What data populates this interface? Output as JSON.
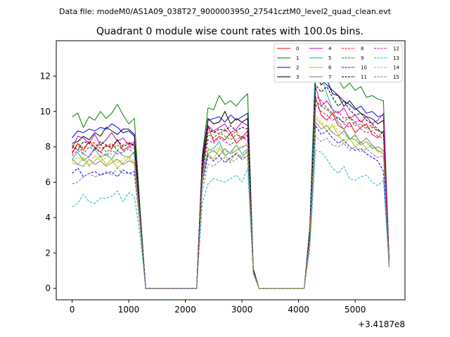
{
  "header": {
    "file_line": "Data file: modeM0/AS1A09_038T27_9000003950_27541cztM0_level2_quad_clean.evt"
  },
  "chart_data": {
    "type": "line",
    "title": "Quadrant 0 module wise count rates with 100.0s bins.",
    "xlabel": "",
    "ylabel": "",
    "x_offset_label": "+3.4187e8",
    "xlim": [
      -280,
      5880
    ],
    "ylim": [
      -0.65,
      14.0
    ],
    "xticks": [
      0,
      1000,
      2000,
      3000,
      4000,
      5000
    ],
    "yticks": [
      0,
      2,
      4,
      6,
      8,
      10,
      12
    ],
    "grid": false,
    "legend_placement": "top-right",
    "legend_columns": 4,
    "x": [
      0,
      100,
      200,
      300,
      400,
      500,
      600,
      700,
      800,
      900,
      1000,
      1100,
      1200,
      1300,
      1400,
      1500,
      1600,
      1700,
      1800,
      1900,
      2000,
      2100,
      2200,
      2300,
      2400,
      2500,
      2600,
      2700,
      2800,
      2900,
      3000,
      3100,
      3200,
      3300,
      3400,
      3500,
      3600,
      3700,
      3800,
      3900,
      4000,
      4100,
      4200,
      4300,
      4400,
      4500,
      4600,
      4700,
      4800,
      4900,
      5000,
      5100,
      5200,
      5300,
      5400,
      5500,
      5600
    ],
    "series": [
      {
        "name": "0",
        "color": "#ff0000",
        "dash": "solid",
        "values": [
          7.6,
          8.2,
          7.8,
          8.3,
          8.0,
          7.7,
          8.1,
          7.9,
          8.4,
          7.8,
          8.0,
          8.2,
          4.0,
          0,
          0,
          0,
          0,
          0,
          0,
          0,
          0,
          0,
          0,
          6.5,
          9.2,
          8.3,
          8.6,
          8.4,
          8.8,
          8.2,
          8.5,
          8.9,
          1.0,
          0,
          0,
          0,
          0,
          0,
          0,
          0,
          0,
          0,
          3.0,
          10.8,
          9.8,
          9.5,
          9.9,
          9.2,
          9.0,
          9.4,
          8.8,
          9.1,
          9.3,
          8.7,
          8.5,
          8.9,
          1.5
        ]
      },
      {
        "name": "1",
        "color": "#008000",
        "dash": "solid",
        "values": [
          9.7,
          9.9,
          9.1,
          9.7,
          9.5,
          10.0,
          9.6,
          9.9,
          10.4,
          9.8,
          9.3,
          9.6,
          4.5,
          0,
          0,
          0,
          0,
          0,
          0,
          0,
          0,
          0,
          0,
          7.5,
          10.2,
          10.1,
          10.9,
          10.4,
          10.6,
          10.3,
          10.7,
          11.0,
          1.1,
          0,
          0,
          0,
          0,
          0,
          0,
          0,
          0,
          0,
          3.5,
          13.2,
          12.8,
          12.5,
          12.0,
          11.8,
          11.3,
          11.6,
          11.2,
          11.4,
          10.8,
          10.9,
          10.7,
          10.6,
          1.5
        ]
      },
      {
        "name": "2",
        "color": "#0000ff",
        "dash": "solid",
        "values": [
          8.5,
          8.9,
          8.8,
          9.0,
          8.9,
          9.1,
          9.0,
          9.3,
          9.1,
          8.8,
          8.9,
          8.6,
          4.3,
          0,
          0,
          0,
          0,
          0,
          0,
          0,
          0,
          0,
          0,
          7.3,
          9.5,
          9.6,
          9.7,
          9.4,
          9.8,
          9.5,
          9.7,
          9.9,
          1.1,
          0,
          0,
          0,
          0,
          0,
          0,
          0,
          0,
          0,
          3.3,
          12.3,
          11.8,
          11.5,
          11.2,
          10.9,
          10.6,
          10.4,
          10.1,
          10.3,
          9.9,
          10.0,
          9.7,
          9.8,
          1.5
        ]
      },
      {
        "name": "3",
        "color": "#000000",
        "dash": "solid",
        "values": [
          8.2,
          8.3,
          8.6,
          8.4,
          8.8,
          8.6,
          9.1,
          8.9,
          8.7,
          9.0,
          9.0,
          8.7,
          4.2,
          0,
          0,
          0,
          0,
          0,
          0,
          0,
          0,
          0,
          0,
          7.2,
          9.6,
          9.3,
          9.4,
          10.0,
          9.3,
          9.6,
          9.4,
          9.6,
          1.1,
          0,
          0,
          0,
          0,
          0,
          0,
          0,
          0,
          0,
          3.3,
          12.1,
          11.5,
          11.8,
          11.0,
          10.9,
          10.3,
          10.6,
          10.2,
          9.9,
          9.7,
          9.6,
          9.3,
          9.5,
          1.5
        ]
      },
      {
        "name": "4",
        "color": "#bf00bf",
        "dash": "solid",
        "values": [
          7.9,
          8.6,
          8.5,
          8.2,
          8.7,
          8.1,
          8.4,
          8.8,
          8.3,
          8.5,
          8.1,
          8.3,
          4.1,
          0,
          0,
          0,
          0,
          0,
          0,
          0,
          0,
          0,
          0,
          7.0,
          9.2,
          8.9,
          9.1,
          9.3,
          8.8,
          9.0,
          9.4,
          9.2,
          1.0,
          0,
          0,
          0,
          0,
          0,
          0,
          0,
          0,
          0,
          3.2,
          11.4,
          10.3,
          10.6,
          10.1,
          9.9,
          10.2,
          9.6,
          9.8,
          9.4,
          9.7,
          9.3,
          9.5,
          9.9,
          1.5
        ]
      },
      {
        "name": "5",
        "color": "#20b2aa",
        "dash": "solid",
        "values": [
          7.3,
          7.7,
          7.2,
          7.5,
          7.9,
          7.4,
          7.6,
          7.3,
          7.8,
          7.5,
          7.4,
          7.7,
          3.9,
          0,
          0,
          0,
          0,
          0,
          0,
          0,
          0,
          0,
          0,
          6.4,
          7.8,
          7.9,
          8.3,
          7.5,
          7.7,
          8.1,
          7.6,
          7.9,
          1.0,
          0,
          0,
          0,
          0,
          0,
          0,
          0,
          0,
          0,
          2.9,
          12.8,
          12.0,
          11.0,
          10.1,
          9.4,
          9.0,
          8.5,
          8.4,
          8.1,
          8.3,
          7.9,
          8.0,
          7.8,
          1.3
        ]
      },
      {
        "name": "6",
        "color": "#bfbf00",
        "dash": "solid",
        "values": [
          7.1,
          7.0,
          7.4,
          6.9,
          7.2,
          7.5,
          7.0,
          7.3,
          6.8,
          7.1,
          7.4,
          7.0,
          3.8,
          0,
          0,
          0,
          0,
          0,
          0,
          0,
          0,
          0,
          0,
          6.1,
          7.6,
          7.3,
          7.9,
          7.5,
          7.2,
          7.7,
          7.4,
          7.8,
          0.9,
          0,
          0,
          0,
          0,
          0,
          0,
          0,
          0,
          0,
          2.8,
          9.6,
          9.3,
          8.9,
          9.2,
          8.7,
          8.2,
          8.5,
          8.0,
          8.3,
          7.9,
          8.1,
          7.7,
          7.8,
          1.3
        ]
      },
      {
        "name": "7",
        "color": "#808080",
        "dash": "solid",
        "values": [
          7.3,
          7.0,
          6.9,
          7.3,
          7.0,
          7.2,
          6.9,
          7.1,
          7.3,
          7.0,
          7.2,
          7.1,
          3.8,
          0,
          0,
          0,
          0,
          0,
          0,
          0,
          0,
          0,
          0,
          6.2,
          7.6,
          7.8,
          7.5,
          7.9,
          7.6,
          7.8,
          8.0,
          8.1,
          0.9,
          0,
          0,
          0,
          0,
          0,
          0,
          0,
          0,
          0,
          2.9,
          9.4,
          9.0,
          9.2,
          8.8,
          8.6,
          8.9,
          8.4,
          8.7,
          8.2,
          8.5,
          8.1,
          7.8,
          7.6,
          1.3
        ]
      },
      {
        "name": "8",
        "color": "#ff0000",
        "dash": "dashed",
        "values": [
          7.7,
          8.2,
          7.9,
          8.3,
          8.2,
          7.9,
          8.0,
          8.2,
          7.8,
          8.1,
          8.3,
          8.0,
          4.0,
          0,
          0,
          0,
          0,
          0,
          0,
          0,
          0,
          0,
          0,
          6.5,
          8.8,
          8.9,
          8.7,
          9.0,
          8.6,
          8.9,
          8.4,
          8.7,
          1.0,
          0,
          0,
          0,
          0,
          0,
          0,
          0,
          0,
          0,
          3.0,
          10.9,
          10.6,
          10.2,
          9.9,
          10.0,
          9.6,
          9.7,
          9.4,
          9.5,
          9.1,
          9.2,
          8.9,
          8.8,
          1.4
        ]
      },
      {
        "name": "9",
        "color": "#008000",
        "dash": "dashed",
        "values": [
          7.9,
          8.1,
          7.6,
          8.0,
          7.8,
          8.2,
          7.7,
          7.9,
          8.1,
          7.8,
          8.0,
          7.9,
          4.0,
          0,
          0,
          0,
          0,
          0,
          0,
          0,
          0,
          0,
          0,
          6.6,
          8.7,
          8.5,
          8.8,
          8.6,
          8.4,
          8.7,
          8.5,
          8.6,
          1.0,
          0,
          0,
          0,
          0,
          0,
          0,
          0,
          0,
          0,
          3.1,
          10.6,
          10.3,
          10.1,
          9.8,
          9.6,
          9.4,
          9.7,
          9.2,
          9.3,
          9.0,
          9.1,
          8.9,
          8.8,
          1.4
        ]
      },
      {
        "name": "10",
        "color": "#0000ff",
        "dash": "dashed",
        "values": [
          6.5,
          6.8,
          6.3,
          6.5,
          6.6,
          6.4,
          6.5,
          6.6,
          6.3,
          6.7,
          6.5,
          6.6,
          3.5,
          0,
          0,
          0,
          0,
          0,
          0,
          0,
          0,
          0,
          0,
          5.9,
          7.5,
          7.2,
          7.5,
          7.1,
          7.4,
          7.6,
          7.3,
          7.5,
          0.9,
          0,
          0,
          0,
          0,
          0,
          0,
          0,
          0,
          0,
          2.7,
          9.2,
          8.7,
          8.9,
          8.5,
          8.2,
          8.4,
          8.0,
          7.8,
          7.9,
          7.6,
          7.4,
          7.2,
          6.6,
          1.2
        ]
      },
      {
        "name": "11",
        "color": "#000000",
        "dash": "dashed",
        "values": [
          8.1,
          7.8,
          8.3,
          8.2,
          7.9,
          8.3,
          8.1,
          8.0,
          8.4,
          8.0,
          8.2,
          8.1,
          4.1,
          0,
          0,
          0,
          0,
          0,
          0,
          0,
          0,
          0,
          0,
          6.8,
          9.1,
          8.8,
          9.0,
          8.9,
          9.2,
          8.9,
          9.1,
          9.0,
          1.0,
          0,
          0,
          0,
          0,
          0,
          0,
          0,
          0,
          0,
          3.2,
          11.5,
          11.1,
          11.4,
          10.8,
          10.3,
          10.6,
          10.1,
          9.8,
          9.9,
          9.5,
          9.3,
          9.0,
          8.7,
          1.4
        ]
      },
      {
        "name": "12",
        "color": "#bf00bf",
        "dash": "dashed",
        "values": [
          7.5,
          7.8,
          7.6,
          7.4,
          7.9,
          7.7,
          7.5,
          7.8,
          7.6,
          7.7,
          7.9,
          7.6,
          3.9,
          0,
          0,
          0,
          0,
          0,
          0,
          0,
          0,
          0,
          0,
          6.4,
          8.4,
          8.2,
          8.5,
          8.3,
          8.1,
          8.4,
          8.6,
          8.3,
          1.0,
          0,
          0,
          0,
          0,
          0,
          0,
          0,
          0,
          0,
          3.0,
          10.4,
          10.0,
          9.8,
          9.5,
          9.7,
          9.3,
          9.1,
          9.4,
          9.0,
          8.8,
          8.9,
          8.6,
          8.5,
          1.4
        ]
      },
      {
        "name": "13",
        "color": "#00bfbf",
        "dash": "dashed",
        "values": [
          4.6,
          4.8,
          5.3,
          4.9,
          4.8,
          5.1,
          5.1,
          5.2,
          5.5,
          4.9,
          5.4,
          5.2,
          3.0,
          0,
          0,
          0,
          0,
          0,
          0,
          0,
          0,
          0,
          0,
          4.8,
          5.9,
          6.2,
          6.1,
          6.0,
          6.2,
          6.4,
          6.0,
          6.8,
          0.8,
          0,
          0,
          0,
          0,
          0,
          0,
          0,
          0,
          0,
          2.3,
          7.8,
          7.7,
          7.3,
          6.8,
          6.5,
          6.9,
          6.2,
          6.1,
          6.3,
          6.4,
          6.0,
          5.8,
          6.1,
          1.2
        ]
      },
      {
        "name": "14",
        "color": "#bfbf00",
        "dash": "dashed",
        "values": [
          7.2,
          7.4,
          7.3,
          7.0,
          7.5,
          7.2,
          7.4,
          7.6,
          7.1,
          7.3,
          7.5,
          7.2,
          3.8,
          0,
          0,
          0,
          0,
          0,
          0,
          0,
          0,
          0,
          0,
          6.2,
          7.9,
          7.7,
          8.0,
          7.8,
          7.6,
          8.1,
          7.9,
          8.2,
          0.9,
          0,
          0,
          0,
          0,
          0,
          0,
          0,
          0,
          0,
          2.9,
          9.8,
          9.4,
          9.1,
          9.3,
          8.9,
          8.7,
          8.4,
          8.6,
          8.1,
          8.3,
          8.0,
          7.8,
          7.6,
          1.3
        ]
      },
      {
        "name": "15",
        "color": "#808080",
        "dash": "dashed",
        "values": [
          5.9,
          6.0,
          6.3,
          6.5,
          6.3,
          6.4,
          6.6,
          6.4,
          6.8,
          6.5,
          6.5,
          6.4,
          3.5,
          0,
          0,
          0,
          0,
          0,
          0,
          0,
          0,
          0,
          0,
          5.5,
          7.0,
          6.9,
          7.2,
          7.4,
          7.1,
          7.3,
          7.5,
          7.7,
          0.9,
          0,
          0,
          0,
          0,
          0,
          0,
          0,
          0,
          0,
          2.6,
          8.6,
          8.3,
          8.5,
          8.1,
          8.0,
          8.2,
          7.8,
          8.0,
          7.7,
          7.9,
          7.6,
          7.4,
          7.5,
          1.2
        ]
      }
    ]
  }
}
